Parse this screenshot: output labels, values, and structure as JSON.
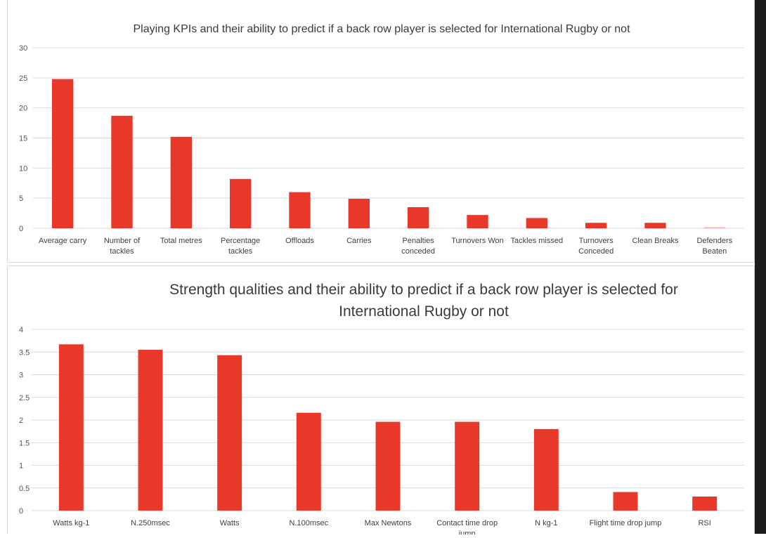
{
  "chart_data": [
    {
      "type": "bar",
      "title": "Playing KPIs and their ability to predict if a back row player is selected for International Rugby or not",
      "categories": [
        [
          "Average carry"
        ],
        [
          "Number of",
          "tackles"
        ],
        [
          "Total metres"
        ],
        [
          "Percentage",
          "tackles"
        ],
        [
          "Offloads"
        ],
        [
          "Carries"
        ],
        [
          "Penalties",
          "conceded"
        ],
        [
          "Turnovers Won"
        ],
        [
          "Tackles missed"
        ],
        [
          "Turnovers",
          "Conceded"
        ],
        [
          "Clean Breaks"
        ],
        [
          "Defenders",
          "Beaten"
        ]
      ],
      "values": [
        24.8,
        18.7,
        15.2,
        8.2,
        6.0,
        4.9,
        3.5,
        2.2,
        1.7,
        0.9,
        0.9,
        0.15
      ],
      "ylim": [
        0,
        30
      ],
      "yticks": [
        0,
        5,
        10,
        15,
        20,
        25,
        30
      ],
      "grid": true,
      "bar_color": "#e8382a",
      "last_bar_color": "#f4a59e"
    },
    {
      "type": "bar",
      "title_lines": [
        "Strength qualities and their ability to predict if a back row player is selected for",
        "International Rugby or not"
      ],
      "categories": [
        [
          "Watts kg-1"
        ],
        [
          "N.250msec"
        ],
        [
          "Watts"
        ],
        [
          "N.100msec"
        ],
        [
          "Max Newtons"
        ],
        [
          "Contact time drop",
          "jump"
        ],
        [
          "N kg-1"
        ],
        [
          "Flight time drop jump"
        ],
        [
          "RSI"
        ]
      ],
      "values": [
        3.67,
        3.55,
        3.43,
        2.16,
        1.96,
        1.96,
        1.8,
        0.41,
        0.31
      ],
      "ylim": [
        0,
        4
      ],
      "yticks": [
        "0",
        "0.5",
        "1",
        "1.5",
        "2",
        "2.5",
        "3",
        "3.5",
        "4"
      ],
      "grid": true,
      "bar_color": "#e8382a"
    }
  ]
}
